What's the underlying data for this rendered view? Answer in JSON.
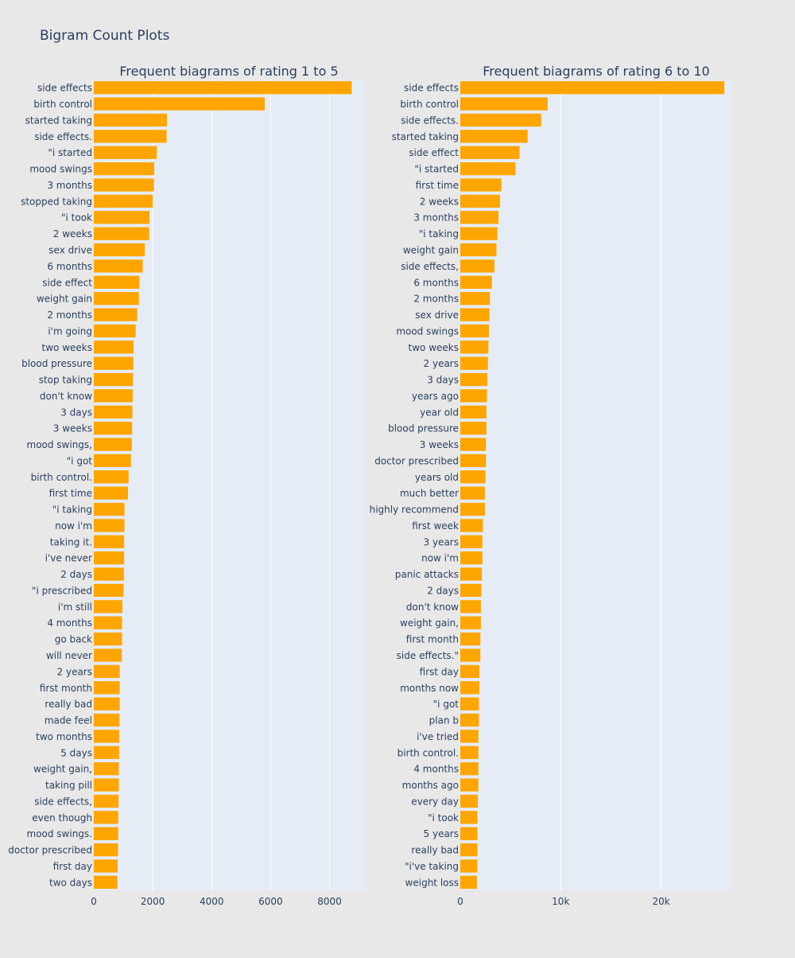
{
  "title": "Bigram Count Plots",
  "colors": {
    "bar": "#FFA500",
    "plot_bg": "#E5ECF6",
    "paper_bg": "#E8E8E8",
    "grid": "#FFFFFF",
    "text": "#2A3F5F"
  },
  "chart_data": [
    {
      "type": "bar",
      "orientation": "horizontal",
      "title": "Frequent biagrams of rating 1 to 5",
      "xlim": [
        0,
        9200
      ],
      "xticks": [
        0,
        2000,
        4000,
        6000,
        8000
      ],
      "xtick_labels": [
        "0",
        "2000",
        "4000",
        "6000",
        "8000"
      ],
      "grid": true,
      "categories": [
        "side effects",
        "birth control",
        "started taking",
        "side effects.",
        "\"i started",
        "mood swings",
        "3 months",
        "stopped taking",
        "\"i took",
        "2 weeks",
        "sex drive",
        "6 months",
        "side effect",
        "weight gain",
        "2 months",
        "i'm going",
        "two weeks",
        "blood pressure",
        "stop taking",
        "don't know",
        "3 days",
        "3 weeks",
        "mood swings,",
        "\"i got",
        "birth control.",
        "first time",
        "\"i taking",
        "now i'm",
        "taking it.",
        "i've never",
        "2 days",
        "\"i prescribed",
        "i'm still",
        "4 months",
        "go back",
        "will never",
        "2 years",
        "first month",
        "really bad",
        "made feel",
        "two months",
        "5 days",
        "weight gain,",
        "taking pill",
        "side effects,",
        "even though",
        "mood swings.",
        "doctor prescribed",
        "first day",
        "two days"
      ],
      "values": [
        8750,
        5800,
        2480,
        2470,
        2140,
        2050,
        2040,
        2000,
        1890,
        1880,
        1730,
        1660,
        1550,
        1530,
        1470,
        1420,
        1350,
        1340,
        1330,
        1320,
        1310,
        1300,
        1290,
        1260,
        1180,
        1160,
        1040,
        1040,
        1030,
        1030,
        1020,
        1010,
        970,
        960,
        960,
        950,
        880,
        880,
        880,
        870,
        860,
        860,
        850,
        850,
        840,
        830,
        830,
        820,
        810,
        800
      ]
    },
    {
      "type": "bar",
      "orientation": "horizontal",
      "title": "Frequent biagrams of rating 6 to 10",
      "xlim": [
        0,
        27000
      ],
      "xticks": [
        0,
        10000,
        20000
      ],
      "xtick_labels": [
        "0",
        "10k",
        "20k"
      ],
      "grid": true,
      "categories": [
        "side effects",
        "birth control",
        "side effects.",
        "started taking",
        "side effect",
        "\"i started",
        "first time",
        "2 weeks",
        "3 months",
        "\"i taking",
        "weight gain",
        "side effects,",
        "6 months",
        "2 months",
        "sex drive",
        "mood swings",
        "two weeks",
        "2 years",
        "3 days",
        "years ago",
        "year old",
        "blood pressure",
        "3 weeks",
        "doctor prescribed",
        "years old",
        "much better",
        "highly recommend",
        "first week",
        "3 years",
        "now i'm",
        "panic attacks",
        "2 days",
        "don't know",
        "weight gain,",
        "first month",
        "side effects.\"",
        "first day",
        "months now",
        "\"i got",
        "plan b",
        "i've tried",
        "birth control.",
        "4 months",
        "months ago",
        "every day",
        "\"i took",
        "5 years",
        "really bad",
        "\"i've taking",
        "weight loss"
      ],
      "values": [
        26300,
        8700,
        8050,
        6700,
        5900,
        5500,
        4100,
        3950,
        3800,
        3700,
        3600,
        3400,
        3150,
        2950,
        2900,
        2850,
        2800,
        2750,
        2700,
        2650,
        2600,
        2600,
        2550,
        2550,
        2500,
        2450,
        2450,
        2250,
        2200,
        2200,
        2150,
        2100,
        2050,
        2050,
        2000,
        2000,
        1900,
        1900,
        1850,
        1850,
        1800,
        1800,
        1800,
        1800,
        1750,
        1700,
        1700,
        1700,
        1700,
        1650
      ]
    }
  ]
}
